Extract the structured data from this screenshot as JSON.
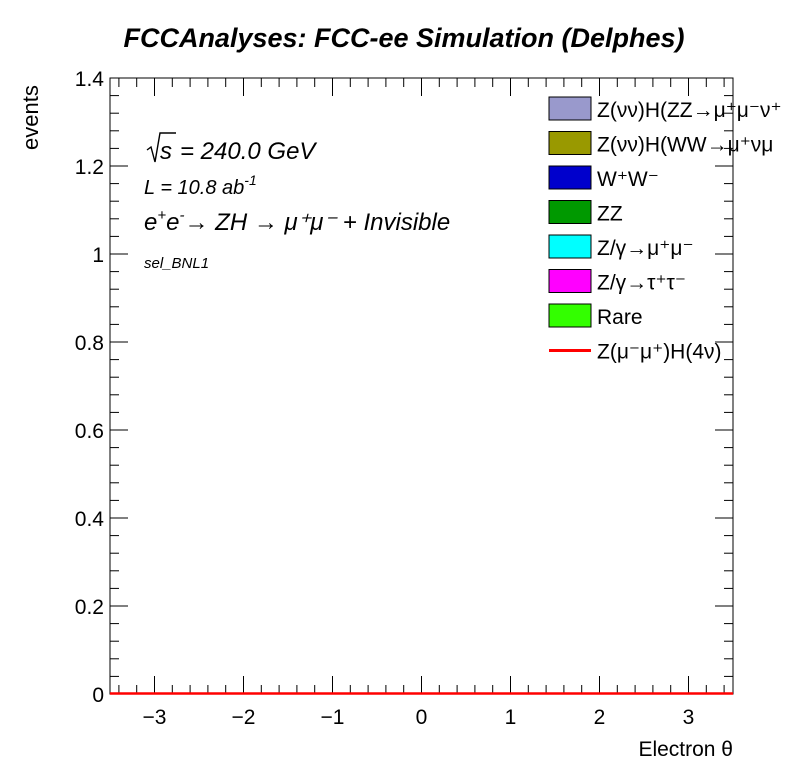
{
  "chart_data": {
    "type": "bar",
    "title": "FCCAnalyses: FCC-ee Simulation (Delphes)",
    "xlabel": "Electron θ",
    "ylabel": "events",
    "xlim": [
      -3.5,
      3.5
    ],
    "ylim": [
      0,
      1.4
    ],
    "x_ticks": [
      "−3",
      "−2",
      "−1",
      "0",
      "1",
      "2",
      "3"
    ],
    "y_ticks": [
      "0",
      "0.2",
      "0.4",
      "0.6",
      "0.8",
      "1",
      "1.2",
      "1.4"
    ],
    "grid": false,
    "legend_position": "top-right",
    "annotations": {
      "sqrt_s": "= 240.0 GeV",
      "lumi": "L = 10.8 ab",
      "lumi_exp": "-1",
      "process": "→ ZH → μ⁺μ⁻ + Invisible",
      "selection": "sel_BNL1"
    },
    "series": [
      {
        "name": "Z(νν̄)H(ZZ→μ⁺μ⁻ν⁺ν⁻)",
        "legend_text": "Z(νν)H(ZZ→μ⁺μ⁻ν⁺",
        "color": "#9999cc",
        "style": "fill",
        "values": [
          0,
          0,
          0,
          0,
          0,
          0,
          0
        ]
      },
      {
        "name": "Z(νν̄)H(WW→μ⁺νμ⁻ν)",
        "legend_text": "Z(νν)H(WW→μ⁺νμ",
        "color": "#999900",
        "style": "fill",
        "values": [
          0,
          0,
          0,
          0,
          0,
          0,
          0
        ]
      },
      {
        "name": "W⁺W⁻",
        "legend_text": "W⁺W⁻",
        "color": "#0000cc",
        "style": "fill",
        "values": [
          0,
          0,
          0,
          0,
          0,
          0,
          0
        ]
      },
      {
        "name": "ZZ",
        "legend_text": "ZZ",
        "color": "#009900",
        "style": "fill",
        "values": [
          0,
          0,
          0,
          0,
          0,
          0,
          0
        ]
      },
      {
        "name": "Z/γ→μ⁺μ⁻",
        "legend_text": "Z/γ→μ⁺μ⁻",
        "color": "#00ffff",
        "style": "fill",
        "values": [
          0,
          0,
          0,
          0,
          0,
          0,
          0
        ]
      },
      {
        "name": "Z/γ→τ⁺τ⁻",
        "legend_text": "Z/γ→τ⁺τ⁻",
        "color": "#ff00ff",
        "style": "fill",
        "values": [
          0,
          0,
          0,
          0,
          0,
          0,
          0
        ]
      },
      {
        "name": "Rare",
        "legend_text": "Rare",
        "color": "#33ff00",
        "style": "fill",
        "values": [
          0,
          0,
          0,
          0,
          0,
          0,
          0
        ]
      },
      {
        "name": "Z(μ⁻μ⁺)H(4ν)",
        "legend_text": "Z(μ⁻μ⁺)H(4ν)",
        "color": "#ff0000",
        "style": "line",
        "values": [
          0,
          0,
          0,
          0,
          0,
          0,
          0
        ]
      }
    ]
  }
}
